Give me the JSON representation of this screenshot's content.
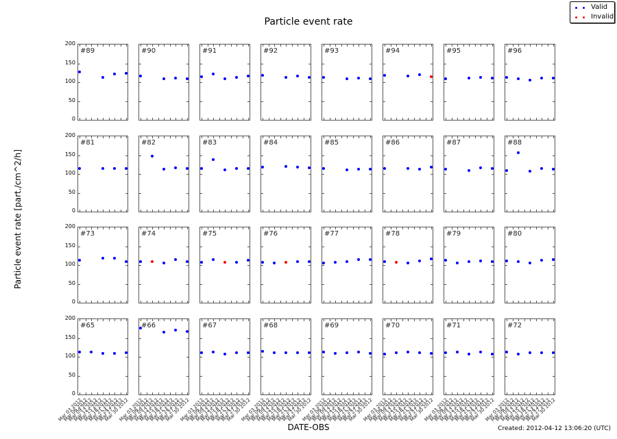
{
  "header": {
    "title": "Particle event rate"
  },
  "legend": {
    "items": [
      {
        "label": "Valid",
        "color": "#0000ff"
      },
      {
        "label": "Invalid",
        "color": "#ff0000"
      }
    ]
  },
  "axes": {
    "ylabel": "Particle event rate [part./cm^2/h]",
    "xlabel": "DATE-OBS",
    "yticks": [
      "200",
      "150",
      "100",
      "50",
      "0"
    ],
    "xticks": [
      "Mar 03 2012",
      "Mar 06 2012",
      "Mar 09 2012",
      "Mar 12 2012",
      "Mar 15 2012",
      "Mar 18 2012",
      "Mar 21 2012",
      "Mar 24 2012",
      "Mar 27 2012",
      "Mar 30 2012"
    ]
  },
  "footer": {
    "created": "Created: 2012-04-12 13:06:20 (UTC)"
  },
  "colors": {
    "valid": "#0000ff",
    "invalid": "#ff0000",
    "frame": "#555555"
  },
  "chart_data": {
    "type": "scatter",
    "title": "Particle event rate",
    "xlabel": "DATE-OBS",
    "ylabel": "Particle event rate [part./cm^2/h]",
    "ylim": [
      0,
      200
    ],
    "grid": false,
    "legend_position": "upper right",
    "x_positions": [
      0,
      0.25,
      0.5,
      0.75,
      1.0
    ],
    "panels": [
      {
        "id": "#89",
        "points": [
          [
            0,
            127,
            "v"
          ],
          [
            0.5,
            112,
            "v"
          ],
          [
            0.75,
            121,
            "v"
          ],
          [
            1.0,
            123,
            "v"
          ]
        ]
      },
      {
        "id": "#90",
        "points": [
          [
            0,
            116,
            "v"
          ],
          [
            0.5,
            110,
            "v"
          ],
          [
            0.75,
            111,
            "v"
          ],
          [
            1.0,
            110,
            "v"
          ]
        ]
      },
      {
        "id": "#91",
        "points": [
          [
            0,
            115,
            "v"
          ],
          [
            0.25,
            122,
            "v"
          ],
          [
            0.5,
            110,
            "v"
          ],
          [
            0.75,
            112,
            "v"
          ],
          [
            1.0,
            116,
            "v"
          ]
        ]
      },
      {
        "id": "#92",
        "points": [
          [
            0,
            119,
            "v"
          ],
          [
            0.5,
            113,
            "v"
          ],
          [
            0.75,
            117,
            "v"
          ],
          [
            1.0,
            112,
            "v"
          ]
        ]
      },
      {
        "id": "#93",
        "points": [
          [
            0,
            113,
            "v"
          ],
          [
            0.5,
            110,
            "v"
          ],
          [
            0.75,
            111,
            "v"
          ],
          [
            1.0,
            109,
            "v"
          ]
        ]
      },
      {
        "id": "#94",
        "points": [
          [
            0,
            119,
            "v"
          ],
          [
            0.5,
            116,
            "v"
          ],
          [
            0.75,
            120,
            "v"
          ],
          [
            1.0,
            115,
            "i"
          ]
        ]
      },
      {
        "id": "#95",
        "points": [
          [
            0,
            110,
            "v"
          ],
          [
            0.5,
            111,
            "v"
          ],
          [
            0.75,
            112,
            "v"
          ],
          [
            1.0,
            111,
            "v"
          ]
        ]
      },
      {
        "id": "#96",
        "points": [
          [
            0,
            113,
            "v"
          ],
          [
            0.25,
            110,
            "v"
          ],
          [
            0.5,
            106,
            "v"
          ],
          [
            0.75,
            111,
            "v"
          ],
          [
            1.0,
            111,
            "v"
          ]
        ]
      },
      {
        "id": "#81",
        "points": [
          [
            0,
            115,
            "v"
          ],
          [
            0.5,
            114,
            "v"
          ],
          [
            0.75,
            115,
            "v"
          ],
          [
            1.0,
            114,
            "v"
          ]
        ]
      },
      {
        "id": "#82",
        "points": [
          [
            0.25,
            148,
            "v"
          ],
          [
            0.5,
            112,
            "v"
          ],
          [
            0.75,
            116,
            "v"
          ],
          [
            1.0,
            114,
            "v"
          ]
        ]
      },
      {
        "id": "#83",
        "points": [
          [
            0,
            115,
            "v"
          ],
          [
            0.25,
            139,
            "v"
          ],
          [
            0.5,
            111,
            "v"
          ],
          [
            0.75,
            115,
            "v"
          ],
          [
            1.0,
            114,
            "v"
          ]
        ]
      },
      {
        "id": "#84",
        "points": [
          [
            0,
            118,
            "v"
          ],
          [
            0.5,
            120,
            "v"
          ],
          [
            0.75,
            118,
            "v"
          ],
          [
            1.0,
            116,
            "v"
          ]
        ]
      },
      {
        "id": "#85",
        "points": [
          [
            0,
            115,
            "v"
          ],
          [
            0.5,
            111,
            "v"
          ],
          [
            0.75,
            113,
            "v"
          ],
          [
            1.0,
            112,
            "v"
          ]
        ]
      },
      {
        "id": "#86",
        "points": [
          [
            0,
            114,
            "v"
          ],
          [
            0.5,
            114,
            "v"
          ],
          [
            0.75,
            113,
            "v"
          ],
          [
            1.0,
            118,
            "v"
          ]
        ]
      },
      {
        "id": "#87",
        "points": [
          [
            0,
            113,
            "v"
          ],
          [
            0.5,
            109,
            "v"
          ],
          [
            0.75,
            117,
            "v"
          ],
          [
            1.0,
            114,
            "v"
          ]
        ]
      },
      {
        "id": "#88",
        "points": [
          [
            0,
            110,
            "v"
          ],
          [
            0.25,
            156,
            "v"
          ],
          [
            0.5,
            108,
            "v"
          ],
          [
            0.75,
            115,
            "v"
          ],
          [
            1.0,
            112,
            "v"
          ]
        ]
      },
      {
        "id": "#73",
        "points": [
          [
            0,
            113,
            "v"
          ],
          [
            0.5,
            118,
            "v"
          ],
          [
            0.75,
            118,
            "v"
          ],
          [
            1.0,
            110,
            "v"
          ]
        ]
      },
      {
        "id": "#74",
        "points": [
          [
            0,
            110,
            "v"
          ],
          [
            0.25,
            110,
            "i"
          ],
          [
            0.5,
            105,
            "v"
          ],
          [
            0.75,
            114,
            "v"
          ],
          [
            1.0,
            109,
            "v"
          ]
        ]
      },
      {
        "id": "#75",
        "points": [
          [
            0,
            107,
            "v"
          ],
          [
            0.25,
            114,
            "v"
          ],
          [
            0.5,
            108,
            "i"
          ],
          [
            0.75,
            108,
            "v"
          ],
          [
            1.0,
            112,
            "v"
          ]
        ]
      },
      {
        "id": "#76",
        "points": [
          [
            0,
            108,
            "v"
          ],
          [
            0.25,
            106,
            "v"
          ],
          [
            0.5,
            108,
            "i"
          ],
          [
            0.75,
            109,
            "v"
          ],
          [
            1.0,
            110,
            "v"
          ]
        ]
      },
      {
        "id": "#77",
        "points": [
          [
            0,
            106,
            "v"
          ],
          [
            0.25,
            107,
            "v"
          ],
          [
            0.5,
            109,
            "v"
          ],
          [
            0.75,
            114,
            "v"
          ],
          [
            1.0,
            115,
            "v"
          ]
        ]
      },
      {
        "id": "#78",
        "points": [
          [
            0,
            109,
            "v"
          ],
          [
            0.25,
            107,
            "i"
          ],
          [
            0.5,
            106,
            "v"
          ],
          [
            0.75,
            111,
            "v"
          ],
          [
            1.0,
            116,
            "v"
          ]
        ]
      },
      {
        "id": "#79",
        "points": [
          [
            0,
            112,
            "v"
          ],
          [
            0.25,
            106,
            "v"
          ],
          [
            0.5,
            110,
            "v"
          ],
          [
            0.75,
            111,
            "v"
          ],
          [
            1.0,
            110,
            "v"
          ]
        ]
      },
      {
        "id": "#80",
        "points": [
          [
            0,
            111,
            "v"
          ],
          [
            0.25,
            109,
            "v"
          ],
          [
            0.5,
            106,
            "v"
          ],
          [
            0.75,
            113,
            "v"
          ],
          [
            1.0,
            114,
            "v"
          ]
        ]
      },
      {
        "id": "#65",
        "points": [
          [
            0,
            112,
            "v"
          ],
          [
            0.25,
            112,
            "v"
          ],
          [
            0.5,
            109,
            "v"
          ],
          [
            0.75,
            110,
            "v"
          ],
          [
            1.0,
            111,
            "v"
          ]
        ]
      },
      {
        "id": "#66",
        "points": [
          [
            0,
            177,
            "v"
          ],
          [
            0.5,
            165,
            "v"
          ],
          [
            0.75,
            171,
            "v"
          ],
          [
            1.0,
            168,
            "v"
          ]
        ]
      },
      {
        "id": "#67",
        "points": [
          [
            0,
            111,
            "v"
          ],
          [
            0.25,
            113,
            "v"
          ],
          [
            0.5,
            108,
            "v"
          ],
          [
            0.75,
            111,
            "v"
          ],
          [
            1.0,
            111,
            "v"
          ]
        ]
      },
      {
        "id": "#68",
        "points": [
          [
            0,
            115,
            "v"
          ],
          [
            0.25,
            111,
            "v"
          ],
          [
            0.5,
            111,
            "v"
          ],
          [
            0.75,
            111,
            "v"
          ],
          [
            1.0,
            111,
            "v"
          ]
        ]
      },
      {
        "id": "#69",
        "points": [
          [
            0,
            112,
            "v"
          ],
          [
            0.25,
            110,
            "v"
          ],
          [
            0.5,
            111,
            "v"
          ],
          [
            0.75,
            113,
            "v"
          ],
          [
            1.0,
            109,
            "v"
          ]
        ]
      },
      {
        "id": "#70",
        "points": [
          [
            0,
            108,
            "v"
          ],
          [
            0.25,
            111,
            "v"
          ],
          [
            0.5,
            113,
            "v"
          ],
          [
            0.75,
            111,
            "v"
          ],
          [
            1.0,
            109,
            "v"
          ]
        ]
      },
      {
        "id": "#71",
        "points": [
          [
            0,
            111,
            "v"
          ],
          [
            0.25,
            113,
            "v"
          ],
          [
            0.5,
            107,
            "v"
          ],
          [
            0.75,
            112,
            "v"
          ],
          [
            1.0,
            108,
            "v"
          ]
        ]
      },
      {
        "id": "#72",
        "points": [
          [
            0,
            112,
            "v"
          ],
          [
            0.25,
            107,
            "v"
          ],
          [
            0.5,
            111,
            "v"
          ],
          [
            0.75,
            111,
            "v"
          ],
          [
            1.0,
            111,
            "v"
          ]
        ]
      }
    ]
  }
}
